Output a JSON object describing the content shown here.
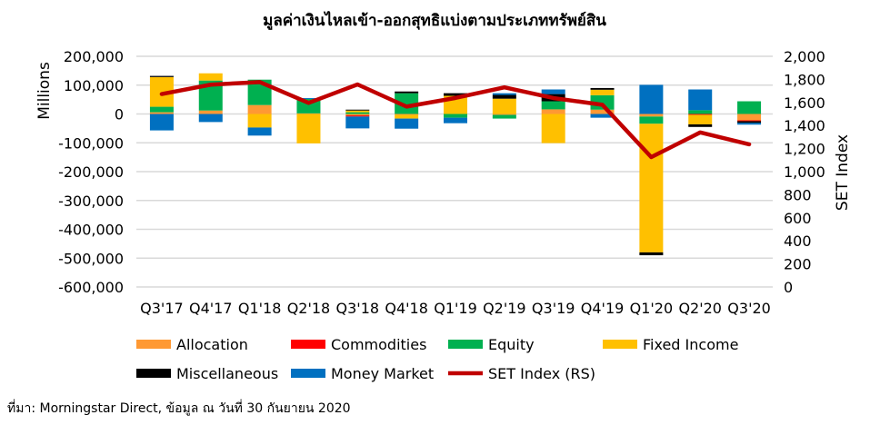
{
  "chart_data": {
    "type": "bar",
    "stacked": true,
    "title": "มูลค่าเงินไหลเข้า-ออกสุทธิแบ่งตามประเภททรัพย์สิน",
    "ylabel": "Millions",
    "y2label": "SET Index",
    "ylim": [
      -600000,
      200000
    ],
    "y2lim": [
      0,
      2000
    ],
    "yticks": [
      "200,000",
      "100,000",
      "0",
      "-100,000",
      "-200,000",
      "-300,000",
      "-400,000",
      "-500,000",
      "-600,000"
    ],
    "y2ticks": [
      "2,000",
      "1,800",
      "1,600",
      "1,400",
      "1,200",
      "1,000",
      "800",
      "600",
      "400",
      "200",
      "0"
    ],
    "categories": [
      "Q3'17",
      "Q4'17",
      "Q1'18",
      "Q2'18",
      "Q3'18",
      "Q4'18",
      "Q1'19",
      "Q2'19",
      "Q3'19",
      "Q4'19",
      "Q1'20",
      "Q2'20",
      "Q3'20"
    ],
    "grid": true,
    "legend_position": "bottom",
    "series": [
      {
        "name": "Allocation",
        "color": "#FF9933",
        "values": [
          6000,
          12000,
          31000,
          2000,
          -5000,
          -3000,
          0,
          -3000,
          16000,
          15000,
          -9000,
          0,
          -22000
        ]
      },
      {
        "name": "Commodities",
        "color": "#FF0000",
        "values": [
          0,
          0,
          0,
          0,
          -4000,
          0,
          0,
          0,
          0,
          0,
          0,
          -3000,
          -3000
        ]
      },
      {
        "name": "Equity",
        "color": "#00B050",
        "values": [
          19000,
          104000,
          88000,
          50000,
          6000,
          72000,
          -13000,
          -13000,
          28000,
          50000,
          -25000,
          13000,
          44000
        ]
      },
      {
        "name": "Fixed Income",
        "color": "#FFC000",
        "values": [
          103000,
          25000,
          -47000,
          -102000,
          6000,
          -13000,
          63000,
          53000,
          -101000,
          19000,
          -446000,
          -33000,
          0
        ]
      },
      {
        "name": "Miscellaneous",
        "color": "#000000",
        "values": [
          4000,
          0,
          0,
          0,
          3000,
          6000,
          9000,
          13000,
          25000,
          6000,
          -10000,
          -9000,
          -6000
        ]
      },
      {
        "name": "Money Market",
        "color": "#0070C0",
        "values": [
          -57000,
          -28000,
          -28000,
          3000,
          -41000,
          -35000,
          -19000,
          6000,
          16000,
          -13000,
          101000,
          72000,
          -6000
        ]
      }
    ],
    "line_series": {
      "name": "SET Index (RS)",
      "color": "#C00000",
      "axis": "right",
      "values": [
        1673,
        1754,
        1777,
        1596,
        1756,
        1564,
        1639,
        1731,
        1638,
        1580,
        1126,
        1340,
        1237
      ]
    }
  },
  "source": "ที่มา: Morningstar Direct, ข้อมูล ณ วันที่ 30 กันยายน 2020"
}
